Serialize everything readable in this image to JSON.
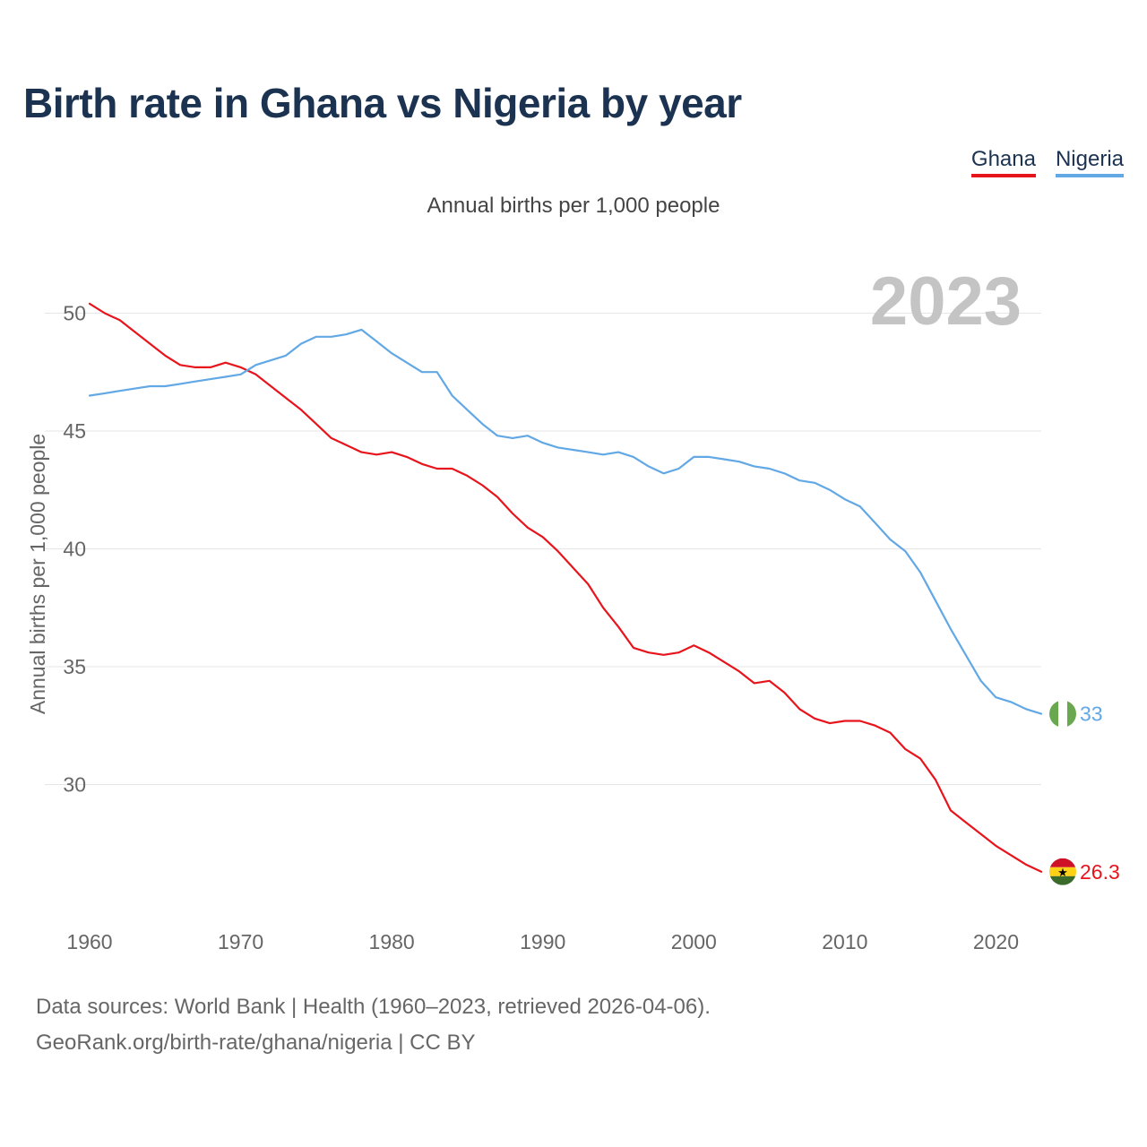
{
  "title": "Birth rate in Ghana vs Nigeria by year",
  "subtitle": "Annual births per 1,000 people",
  "legend": [
    {
      "label": "Ghana",
      "color": "#e8141c"
    },
    {
      "label": "Nigeria",
      "color": "#62a8e5"
    }
  ],
  "sources": {
    "line1": "Data sources: World Bank | Health (1960–2023, retrieved 2026-04-06).",
    "line2": "GeoRank.org/birth-rate/ghana/nigeria | CC BY"
  },
  "chart_data": {
    "type": "line",
    "title": "Birth rate in Ghana vs Nigeria by year",
    "xlabel": "",
    "ylabel": "Annual births per 1,000 people",
    "year_watermark": "2023",
    "xlim": [
      1960,
      2023
    ],
    "ylim": [
      25,
      51.5
    ],
    "xticks": [
      1960,
      1970,
      1980,
      1990,
      2000,
      2010,
      2020
    ],
    "yticks": [
      30,
      35,
      40,
      45,
      50
    ],
    "grid": true,
    "legend_position": "top-right",
    "x": [
      1960,
      1961,
      1962,
      1963,
      1964,
      1965,
      1966,
      1967,
      1968,
      1969,
      1970,
      1971,
      1972,
      1973,
      1974,
      1975,
      1976,
      1977,
      1978,
      1979,
      1980,
      1981,
      1982,
      1983,
      1984,
      1985,
      1986,
      1987,
      1988,
      1989,
      1990,
      1991,
      1992,
      1993,
      1994,
      1995,
      1996,
      1997,
      1998,
      1999,
      2000,
      2001,
      2002,
      2003,
      2004,
      2005,
      2006,
      2007,
      2008,
      2009,
      2010,
      2011,
      2012,
      2013,
      2014,
      2015,
      2016,
      2017,
      2018,
      2019,
      2020,
      2021,
      2022,
      2023
    ],
    "series": [
      {
        "name": "Ghana",
        "color": "#e8141c",
        "end_label": "26.3",
        "values": [
          50.4,
          50.0,
          49.7,
          49.2,
          48.7,
          48.2,
          47.8,
          47.7,
          47.7,
          47.9,
          47.7,
          47.4,
          46.9,
          46.4,
          45.9,
          45.3,
          44.7,
          44.4,
          44.1,
          44.0,
          44.1,
          43.9,
          43.6,
          43.4,
          43.4,
          43.1,
          42.7,
          42.2,
          41.5,
          40.9,
          40.5,
          39.9,
          39.2,
          38.5,
          37.5,
          36.7,
          35.8,
          35.6,
          35.5,
          35.6,
          35.9,
          35.6,
          35.2,
          34.8,
          34.3,
          34.4,
          33.9,
          33.2,
          32.8,
          32.6,
          32.7,
          32.7,
          32.5,
          32.2,
          31.5,
          31.1,
          30.2,
          28.9,
          28.4,
          27.9,
          27.4,
          27.0,
          26.6,
          26.3
        ]
      },
      {
        "name": "Nigeria",
        "color": "#62a8e5",
        "end_label": "33",
        "values": [
          46.5,
          46.6,
          46.7,
          46.8,
          46.9,
          46.9,
          47.0,
          47.1,
          47.2,
          47.3,
          47.4,
          47.8,
          48.0,
          48.2,
          48.7,
          49.0,
          49.0,
          49.1,
          49.3,
          48.8,
          48.3,
          47.9,
          47.5,
          47.5,
          46.5,
          45.9,
          45.3,
          44.8,
          44.7,
          44.8,
          44.5,
          44.3,
          44.2,
          44.1,
          44.0,
          44.1,
          43.9,
          43.5,
          43.2,
          43.4,
          43.9,
          43.9,
          43.8,
          43.7,
          43.5,
          43.4,
          43.2,
          42.9,
          42.8,
          42.5,
          42.1,
          41.8,
          41.1,
          40.4,
          39.9,
          39.0,
          37.8,
          36.6,
          35.5,
          34.4,
          33.7,
          33.5,
          33.2,
          33.0
        ]
      }
    ]
  }
}
